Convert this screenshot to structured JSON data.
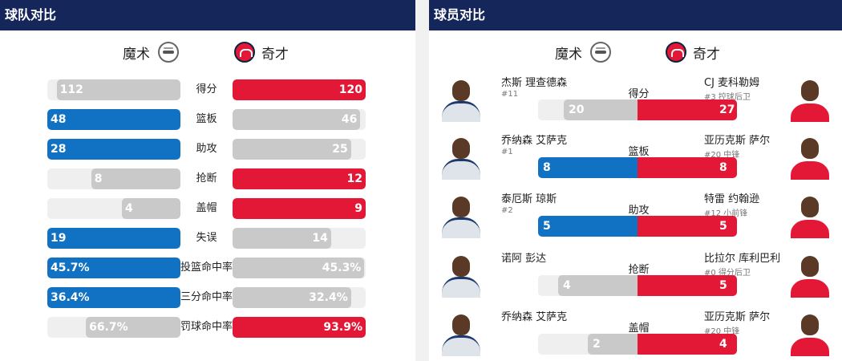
{
  "team_panel": {
    "title": "球队对比",
    "home_team": "魔术",
    "away_team": "奇才",
    "home_logo_icon": "magic-logo-icon",
    "away_logo_icon": "wizards-logo-icon",
    "stats": [
      {
        "label": "得分",
        "left": "112",
        "right": "120",
        "left_pct": 0.93,
        "right_pct": 1.0,
        "leader": "right"
      },
      {
        "label": "篮板",
        "left": "48",
        "right": "46",
        "left_pct": 1.0,
        "right_pct": 0.96,
        "leader": "left"
      },
      {
        "label": "助攻",
        "left": "28",
        "right": "25",
        "left_pct": 1.0,
        "right_pct": 0.89,
        "leader": "left"
      },
      {
        "label": "抢断",
        "left": "8",
        "right": "12",
        "left_pct": 0.67,
        "right_pct": 1.0,
        "leader": "right"
      },
      {
        "label": "盖帽",
        "left": "4",
        "right": "9",
        "left_pct": 0.44,
        "right_pct": 1.0,
        "leader": "right"
      },
      {
        "label": "失误",
        "left": "19",
        "right": "14",
        "left_pct": 1.0,
        "right_pct": 0.74,
        "leader": "left"
      },
      {
        "label": "投篮命中率",
        "left": "45.7%",
        "right": "45.3%",
        "left_pct": 1.0,
        "right_pct": 0.99,
        "leader": "left"
      },
      {
        "label": "三分命中率",
        "left": "36.4%",
        "right": "32.4%",
        "left_pct": 1.0,
        "right_pct": 0.89,
        "leader": "left"
      },
      {
        "label": "罚球命中率",
        "left": "66.7%",
        "right": "93.9%",
        "left_pct": 0.71,
        "right_pct": 1.0,
        "leader": "right"
      }
    ]
  },
  "player_panel": {
    "title": "球员对比",
    "home_team": "魔术",
    "away_team": "奇才",
    "rows": [
      {
        "label": "得分",
        "left_name": "杰斯 理查德森",
        "left_sub": "#11",
        "right_name": "CJ 麦科勒姆",
        "right_sub": "#3 控球后卫",
        "left": "20",
        "right": "27",
        "left_pct": 0.74,
        "right_pct": 1.0,
        "leader": "right"
      },
      {
        "label": "篮板",
        "left_name": "乔纳森 艾萨克",
        "left_sub": "#1",
        "right_name": "亚历克斯 萨尔",
        "right_sub": "#20 中锋",
        "left": "8",
        "right": "8",
        "left_pct": 1.0,
        "right_pct": 1.0,
        "leader": "both"
      },
      {
        "label": "助攻",
        "left_name": "泰厄斯 琼斯",
        "left_sub": "#2",
        "right_name": "特雷 约翰逊",
        "right_sub": "#12 小前锋",
        "left": "5",
        "right": "5",
        "left_pct": 1.0,
        "right_pct": 1.0,
        "leader": "both"
      },
      {
        "label": "抢断",
        "left_name": "诺阿 彭达",
        "left_sub": "",
        "right_name": "比拉尔 库利巴利",
        "right_sub": "#0 得分后卫",
        "left": "4",
        "right": "5",
        "left_pct": 0.8,
        "right_pct": 1.0,
        "leader": "right"
      },
      {
        "label": "盖帽",
        "left_name": "乔纳森 艾萨克",
        "left_sub": "",
        "right_name": "亚历克斯 萨尔",
        "right_sub": "#20 中锋",
        "left": "2",
        "right": "4",
        "left_pct": 0.5,
        "right_pct": 1.0,
        "leader": "right"
      }
    ]
  },
  "colors": {
    "magic_blue": "#1172c3",
    "wizards_red": "#e31837",
    "header_navy": "#14265a",
    "neutral_gray": "#c9c9c9"
  }
}
